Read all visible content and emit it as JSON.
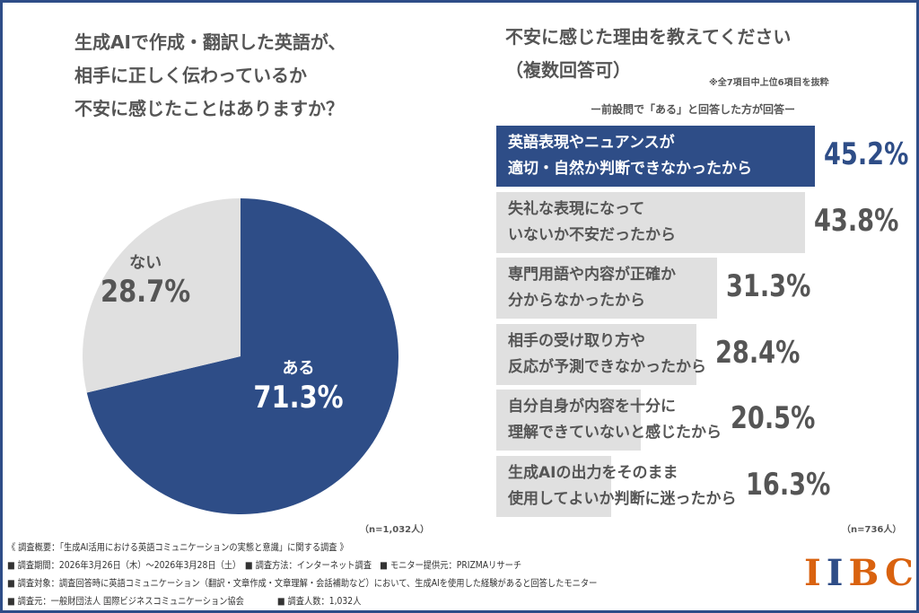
{
  "chart_data": [
    {
      "type": "pie",
      "title": [
        "生成AIで作成・翻訳した英語が、",
        "相手に正しく伝わっているか",
        "不安に感じたことはありますか？"
      ],
      "slices": [
        {
          "label": "ある",
          "value": 71.3,
          "display": "71.3%",
          "color": "#2e4d87"
        },
        {
          "label": "ない",
          "value": 28.7,
          "display": "28.7%",
          "color": "#e0e0e0"
        }
      ],
      "n": "（n=1,032人）"
    },
    {
      "type": "bar",
      "orientation": "horizontal",
      "title": [
        "不安に感じた理由を教えてください",
        "（複数回答可）"
      ],
      "note": "※全7項目中上位6項目を抜粋",
      "subtitle": "ー前設問で「ある」と回答した方が回答ー",
      "categories": [
        [
          "英語表現やニュアンスが",
          "適切・自然か判断できなかったから"
        ],
        [
          "失礼な表現になって",
          "いないか不安だったから"
        ],
        [
          "専門用語や内容が正確か",
          "分からなかったから"
        ],
        [
          "相手の受け取り方や",
          "反応が予測できなかったから"
        ],
        [
          "自分自身が内容を十分に",
          "理解できていないと感じたから"
        ],
        [
          "生成AIの出力をそのまま",
          "使用してよいか判断に迷ったから"
        ]
      ],
      "values": [
        45.2,
        43.8,
        31.3,
        28.4,
        20.5,
        16.3
      ],
      "labels": [
        "45.2%",
        "43.8%",
        "31.3%",
        "28.4%",
        "20.5%",
        "16.3%"
      ],
      "highlight_color": "#2e4d87",
      "bar_color": "#e0e0e0",
      "n": "（n=736人）"
    }
  ],
  "footer": [
    "《 調査概要：「生成AI活用における英語コミュニケーションの実態と意識」に関する調査 》",
    "■ 調査期間：2026年3月26日（木）～2026年3月28日（土）　■ 調査方法：インターネット調査　■ モニター提供元：PRIZMAリサーチ",
    "■ 調査対象：調査回答時に英語コミュニケーション（翻訳・文章作成・文章理解・会話補助など）において、生成AIを使用した経験があると回答したモニター",
    "■ 調査元：一般財団法人 国際ビジネスコミュニケーション協会　　　　■ 調査人数：1,032人"
  ],
  "logo": {
    "text": "IIBC",
    "colors": [
      "#d9620f",
      "#2e4d87"
    ]
  }
}
